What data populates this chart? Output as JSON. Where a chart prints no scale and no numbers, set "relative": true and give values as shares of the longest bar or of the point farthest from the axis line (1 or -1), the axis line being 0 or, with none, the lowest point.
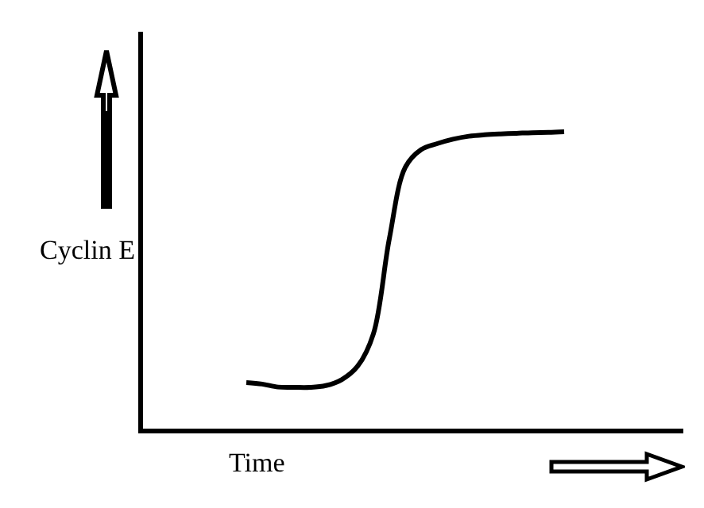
{
  "chart_data": {
    "type": "line",
    "xlabel": "Time",
    "ylabel": "Cyclin E",
    "relative": true,
    "color": "#000000",
    "categories": [
      null,
      null,
      null,
      null,
      null,
      null,
      null,
      null,
      null,
      null,
      null,
      null,
      null,
      null,
      null,
      null,
      null,
      null,
      null,
      null,
      null
    ],
    "values": [
      0.155,
      0.15,
      0.14,
      0.139,
      0.139,
      0.145,
      0.165,
      0.21,
      0.32,
      0.64,
      0.88,
      0.94,
      0.96,
      0.975,
      0.985,
      0.99,
      0.993,
      0.995,
      0.997,
      0.998,
      1
    ]
  }
}
